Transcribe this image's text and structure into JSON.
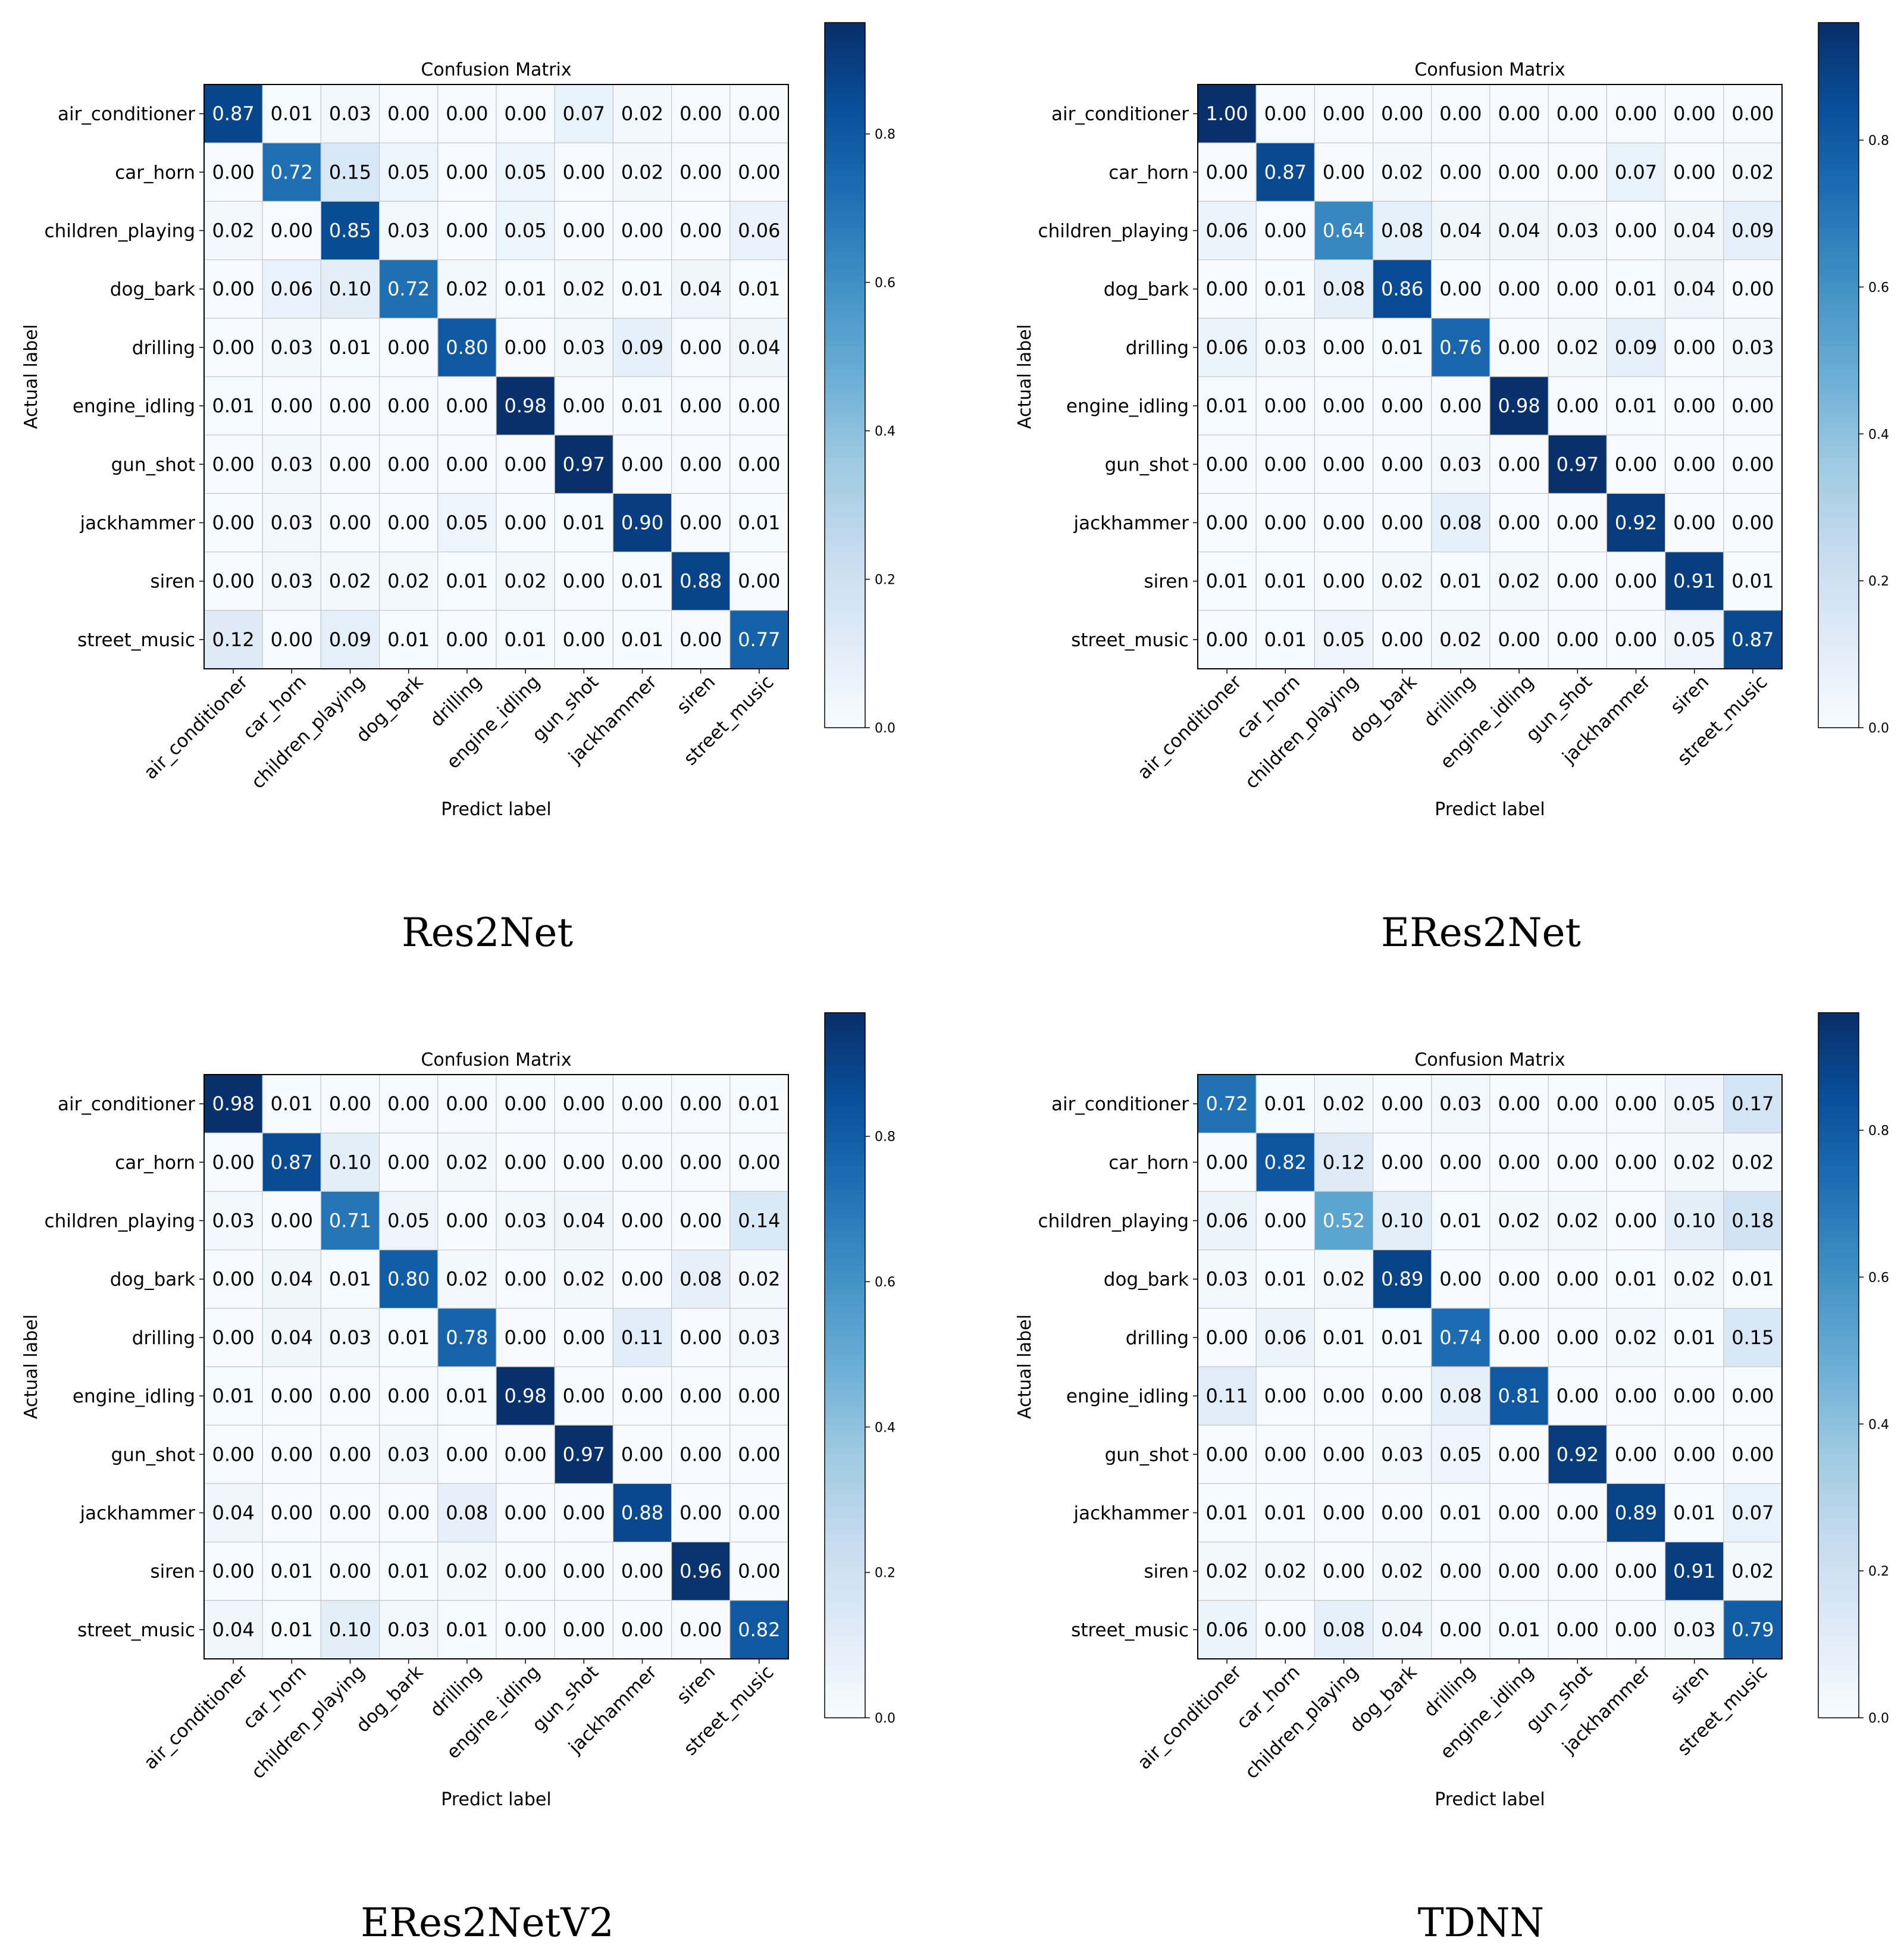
{
  "chart_data": [
    {
      "type": "heatmap",
      "title": "Confusion Matrix",
      "caption": "Res2Net",
      "xlabel": "Predict label",
      "ylabel": "Actual label",
      "categories": [
        "air_conditioner",
        "car_horn",
        "children_playing",
        "dog_bark",
        "drilling",
        "engine_idling",
        "gun_shot",
        "jackhammer",
        "siren",
        "street_music"
      ],
      "colorbar_range": [
        0.0,
        0.95
      ],
      "colorbar_ticks": [
        0.0,
        0.2,
        0.4,
        0.6,
        0.8
      ],
      "colorbar_tick_labels": [
        "0.0",
        "0.2",
        "0.4",
        "0.6",
        "0.8"
      ],
      "matrix": [
        [
          0.87,
          0.01,
          0.03,
          0.0,
          0.0,
          0.0,
          0.07,
          0.02,
          0.0,
          0.0
        ],
        [
          0.0,
          0.72,
          0.15,
          0.05,
          0.0,
          0.05,
          0.0,
          0.02,
          0.0,
          0.0
        ],
        [
          0.02,
          0.0,
          0.85,
          0.03,
          0.0,
          0.05,
          0.0,
          0.0,
          0.0,
          0.06
        ],
        [
          0.0,
          0.06,
          0.1,
          0.72,
          0.02,
          0.01,
          0.02,
          0.01,
          0.04,
          0.01
        ],
        [
          0.0,
          0.03,
          0.01,
          0.0,
          0.8,
          0.0,
          0.03,
          0.09,
          0.0,
          0.04
        ],
        [
          0.01,
          0.0,
          0.0,
          0.0,
          0.0,
          0.98,
          0.0,
          0.01,
          0.0,
          0.0
        ],
        [
          0.0,
          0.03,
          0.0,
          0.0,
          0.0,
          0.0,
          0.97,
          0.0,
          0.0,
          0.0
        ],
        [
          0.0,
          0.03,
          0.0,
          0.0,
          0.05,
          0.0,
          0.01,
          0.9,
          0.0,
          0.01
        ],
        [
          0.0,
          0.03,
          0.02,
          0.02,
          0.01,
          0.02,
          0.0,
          0.01,
          0.88,
          0.0
        ],
        [
          0.12,
          0.0,
          0.09,
          0.01,
          0.0,
          0.01,
          0.0,
          0.01,
          0.0,
          0.77
        ]
      ]
    },
    {
      "type": "heatmap",
      "title": "Confusion Matrix",
      "caption": "ERes2Net",
      "xlabel": "Predict label",
      "ylabel": "Actual label",
      "categories": [
        "air_conditioner",
        "car_horn",
        "children_playing",
        "dog_bark",
        "drilling",
        "engine_idling",
        "gun_shot",
        "jackhammer",
        "siren",
        "street_music"
      ],
      "colorbar_range": [
        0.0,
        0.96
      ],
      "colorbar_ticks": [
        0.0,
        0.2,
        0.4,
        0.6,
        0.8
      ],
      "colorbar_tick_labels": [
        "0.0",
        "0.2",
        "0.4",
        "0.6",
        "0.8"
      ],
      "matrix": [
        [
          1.0,
          0.0,
          0.0,
          0.0,
          0.0,
          0.0,
          0.0,
          0.0,
          0.0,
          0.0
        ],
        [
          0.0,
          0.87,
          0.0,
          0.02,
          0.0,
          0.0,
          0.0,
          0.07,
          0.0,
          0.02
        ],
        [
          0.06,
          0.0,
          0.64,
          0.08,
          0.04,
          0.04,
          0.03,
          0.0,
          0.04,
          0.09
        ],
        [
          0.0,
          0.01,
          0.08,
          0.86,
          0.0,
          0.0,
          0.0,
          0.01,
          0.04,
          0.0
        ],
        [
          0.06,
          0.03,
          0.0,
          0.01,
          0.76,
          0.0,
          0.02,
          0.09,
          0.0,
          0.03
        ],
        [
          0.01,
          0.0,
          0.0,
          0.0,
          0.0,
          0.98,
          0.0,
          0.01,
          0.0,
          0.0
        ],
        [
          0.0,
          0.0,
          0.0,
          0.0,
          0.03,
          0.0,
          0.97,
          0.0,
          0.0,
          0.0
        ],
        [
          0.0,
          0.0,
          0.0,
          0.0,
          0.08,
          0.0,
          0.0,
          0.92,
          0.0,
          0.0
        ],
        [
          0.01,
          0.01,
          0.0,
          0.02,
          0.01,
          0.02,
          0.0,
          0.0,
          0.91,
          0.01
        ],
        [
          0.0,
          0.01,
          0.05,
          0.0,
          0.02,
          0.0,
          0.0,
          0.0,
          0.05,
          0.87
        ]
      ]
    },
    {
      "type": "heatmap",
      "title": "Confusion Matrix",
      "caption": "ERes2NetV2",
      "xlabel": "Predict label",
      "ylabel": "Actual label",
      "categories": [
        "air_conditioner",
        "car_horn",
        "children_playing",
        "dog_bark",
        "drilling",
        "engine_idling",
        "gun_shot",
        "jackhammer",
        "siren",
        "street_music"
      ],
      "colorbar_range": [
        0.0,
        0.97
      ],
      "colorbar_ticks": [
        0.0,
        0.2,
        0.4,
        0.6,
        0.8
      ],
      "colorbar_tick_labels": [
        "0.0",
        "0.2",
        "0.4",
        "0.6",
        "0.8"
      ],
      "matrix": [
        [
          0.98,
          0.01,
          0.0,
          0.0,
          0.0,
          0.0,
          0.0,
          0.0,
          0.0,
          0.01
        ],
        [
          0.0,
          0.87,
          0.1,
          0.0,
          0.02,
          0.0,
          0.0,
          0.0,
          0.0,
          0.0
        ],
        [
          0.03,
          0.0,
          0.71,
          0.05,
          0.0,
          0.03,
          0.04,
          0.0,
          0.0,
          0.14
        ],
        [
          0.0,
          0.04,
          0.01,
          0.8,
          0.02,
          0.0,
          0.02,
          0.0,
          0.08,
          0.02
        ],
        [
          0.0,
          0.04,
          0.03,
          0.01,
          0.78,
          0.0,
          0.0,
          0.11,
          0.0,
          0.03
        ],
        [
          0.01,
          0.0,
          0.0,
          0.0,
          0.01,
          0.98,
          0.0,
          0.0,
          0.0,
          0.0
        ],
        [
          0.0,
          0.0,
          0.0,
          0.03,
          0.0,
          0.0,
          0.97,
          0.0,
          0.0,
          0.0
        ],
        [
          0.04,
          0.0,
          0.0,
          0.0,
          0.08,
          0.0,
          0.0,
          0.88,
          0.0,
          0.0
        ],
        [
          0.0,
          0.01,
          0.0,
          0.01,
          0.02,
          0.0,
          0.0,
          0.0,
          0.96,
          0.0
        ],
        [
          0.04,
          0.01,
          0.1,
          0.03,
          0.01,
          0.0,
          0.0,
          0.0,
          0.0,
          0.82
        ]
      ]
    },
    {
      "type": "heatmap",
      "title": "Confusion Matrix",
      "caption": "TDNN",
      "xlabel": "Predict label",
      "ylabel": "Actual label",
      "categories": [
        "air_conditioner",
        "car_horn",
        "children_playing",
        "dog_bark",
        "drilling",
        "engine_idling",
        "gun_shot",
        "jackhammer",
        "siren",
        "street_music"
      ],
      "colorbar_range": [
        0.0,
        0.96
      ],
      "colorbar_ticks": [
        0.0,
        0.2,
        0.4,
        0.6,
        0.8
      ],
      "colorbar_tick_labels": [
        "0.0",
        "0.2",
        "0.4",
        "0.6",
        "0.8"
      ],
      "matrix": [
        [
          0.72,
          0.01,
          0.02,
          0.0,
          0.03,
          0.0,
          0.0,
          0.0,
          0.05,
          0.17
        ],
        [
          0.0,
          0.82,
          0.12,
          0.0,
          0.0,
          0.0,
          0.0,
          0.0,
          0.02,
          0.02
        ],
        [
          0.06,
          0.0,
          0.52,
          0.1,
          0.01,
          0.02,
          0.02,
          0.0,
          0.1,
          0.18
        ],
        [
          0.03,
          0.01,
          0.02,
          0.89,
          0.0,
          0.0,
          0.0,
          0.01,
          0.02,
          0.01
        ],
        [
          0.0,
          0.06,
          0.01,
          0.01,
          0.74,
          0.0,
          0.0,
          0.02,
          0.01,
          0.15
        ],
        [
          0.11,
          0.0,
          0.0,
          0.0,
          0.08,
          0.81,
          0.0,
          0.0,
          0.0,
          0.0
        ],
        [
          0.0,
          0.0,
          0.0,
          0.03,
          0.05,
          0.0,
          0.92,
          0.0,
          0.0,
          0.0
        ],
        [
          0.01,
          0.01,
          0.0,
          0.0,
          0.01,
          0.0,
          0.0,
          0.89,
          0.01,
          0.07
        ],
        [
          0.02,
          0.02,
          0.0,
          0.02,
          0.0,
          0.0,
          0.0,
          0.0,
          0.91,
          0.02
        ],
        [
          0.06,
          0.0,
          0.08,
          0.04,
          0.0,
          0.01,
          0.0,
          0.0,
          0.03,
          0.79
        ]
      ]
    }
  ]
}
